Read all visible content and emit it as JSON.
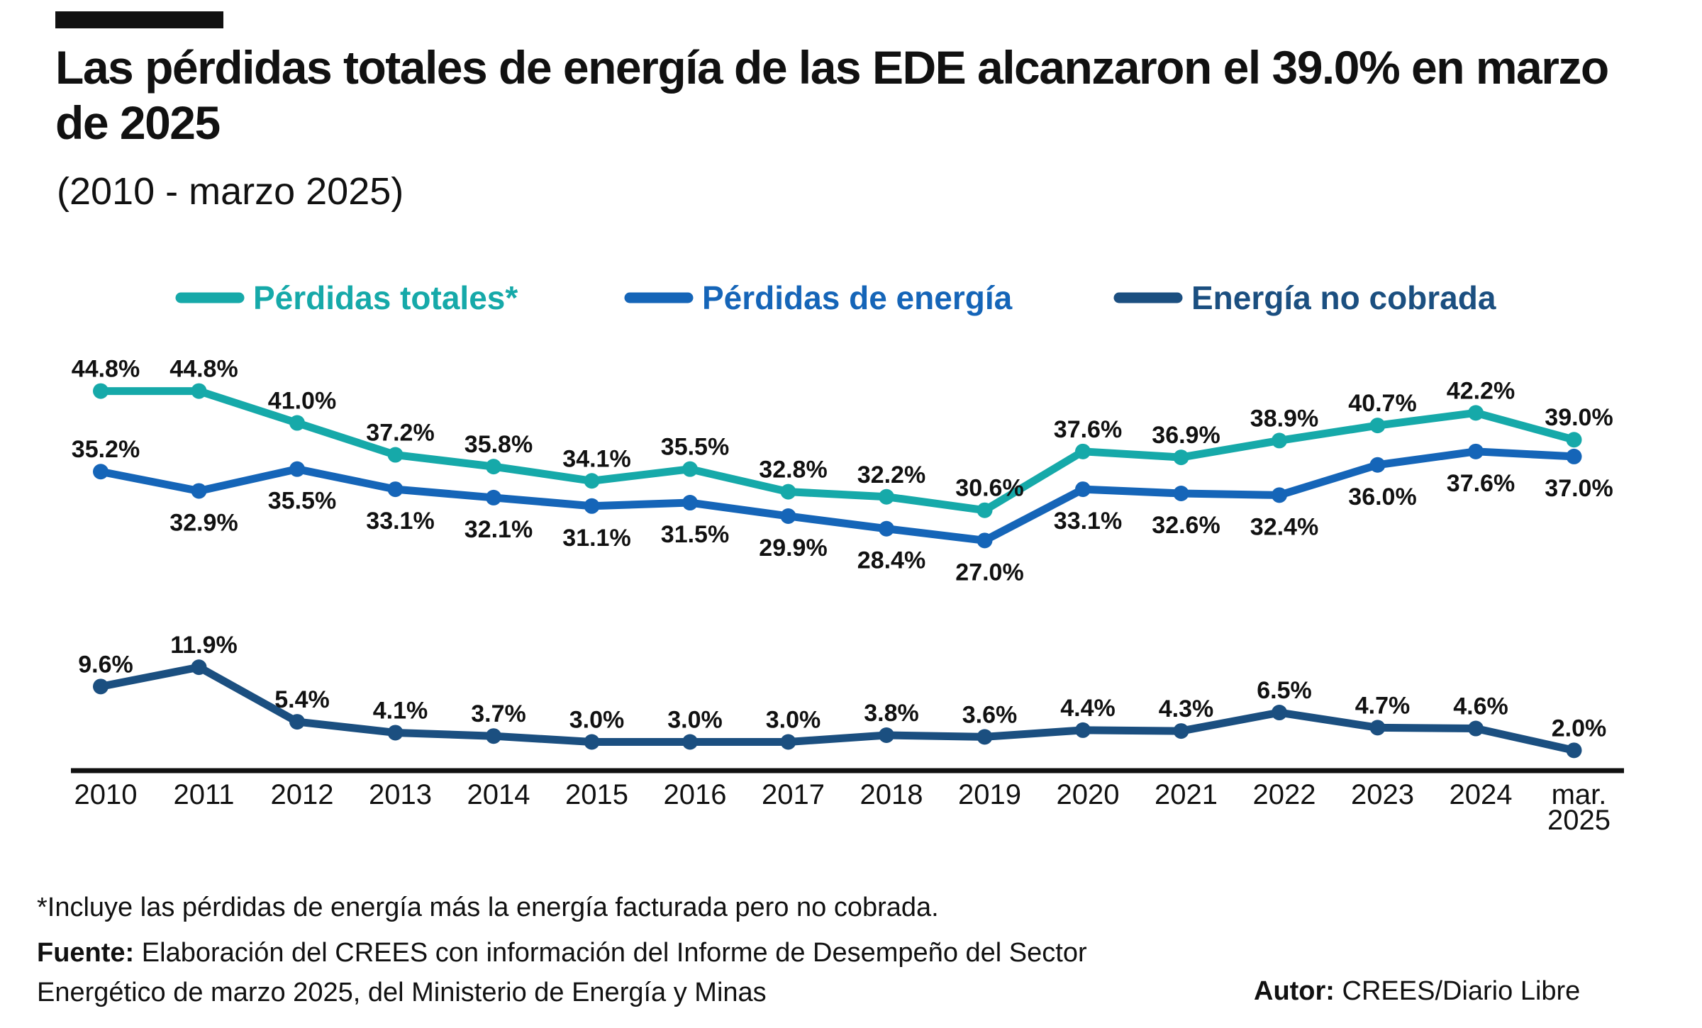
{
  "header": {
    "title": "Las pérdidas totales de energía de las EDE alcanzaron el 39.0% en marzo de 2025",
    "subtitle": "(2010 - marzo 2025)"
  },
  "chart_data": {
    "type": "line",
    "title": "Las pérdidas totales de energía de las EDE alcanzaron el 39.0% en marzo de 2025",
    "subtitle": "(2010 - marzo 2025)",
    "xlabel": "",
    "ylabel": "",
    "ylim": [
      0,
      50
    ],
    "grid": false,
    "legend_position": "top",
    "categories": [
      [
        "2010"
      ],
      [
        "2011"
      ],
      [
        "2012"
      ],
      [
        "2013"
      ],
      [
        "2014"
      ],
      [
        "2015"
      ],
      [
        "2016"
      ],
      [
        "2017"
      ],
      [
        "2018"
      ],
      [
        "2019"
      ],
      [
        "2020"
      ],
      [
        "2021"
      ],
      [
        "2022"
      ],
      [
        "2023"
      ],
      [
        "2024"
      ],
      [
        "mar.",
        "2025"
      ]
    ],
    "series": [
      {
        "name": "Pérdidas totales*",
        "color": "#16A9A9",
        "values": [
          44.8,
          44.8,
          41.0,
          37.2,
          35.8,
          34.1,
          35.5,
          32.8,
          32.2,
          30.6,
          37.6,
          36.9,
          38.9,
          40.7,
          42.2,
          39.0
        ],
        "labels": [
          "44.8%",
          "44.8%",
          "41.0%",
          "37.2%",
          "35.8%",
          "34.1%",
          "35.5%",
          "32.8%",
          "32.2%",
          "30.6%",
          "37.6%",
          "36.9%",
          "38.9%",
          "40.7%",
          "42.2%",
          "39.0%"
        ],
        "label_position": [
          "above",
          "above",
          "above",
          "above",
          "above",
          "above",
          "above",
          "above",
          "above",
          "above",
          "above",
          "above",
          "above",
          "above",
          "above",
          "above"
        ]
      },
      {
        "name": "Pérdidas de energía",
        "color": "#1565B8",
        "values": [
          35.2,
          32.9,
          35.5,
          33.1,
          32.1,
          31.1,
          31.5,
          29.9,
          28.4,
          27.0,
          33.1,
          32.6,
          32.4,
          36.0,
          37.6,
          37.0
        ],
        "labels": [
          "35.2%",
          "32.9%",
          "35.5%",
          "33.1%",
          "32.1%",
          "31.1%",
          "31.5%",
          "29.9%",
          "28.4%",
          "27.0%",
          "33.1%",
          "32.6%",
          "32.4%",
          "36.0%",
          "37.6%",
          "37.0%"
        ],
        "label_position": [
          "above",
          "below",
          "below",
          "below",
          "below",
          "below",
          "below",
          "below",
          "below",
          "below",
          "below",
          "below",
          "below",
          "below",
          "below",
          "below"
        ]
      },
      {
        "name": "Energía no cobrada",
        "color": "#1B4F80",
        "values": [
          9.6,
          11.9,
          5.4,
          4.1,
          3.7,
          3.0,
          3.0,
          3.0,
          3.8,
          3.6,
          4.4,
          4.3,
          6.5,
          4.7,
          4.6,
          2.0
        ],
        "labels": [
          "9.6%",
          "11.9%",
          "5.4%",
          "4.1%",
          "3.7%",
          "3.0%",
          "3.0%",
          "3.0%",
          "3.8%",
          "3.6%",
          "4.4%",
          "4.3%",
          "6.5%",
          "4.7%",
          "4.6%",
          "2.0%"
        ],
        "label_position": [
          "above",
          "above",
          "above",
          "above",
          "above",
          "above",
          "above",
          "above",
          "above",
          "above",
          "above",
          "above",
          "above",
          "above",
          "above",
          "above"
        ]
      }
    ]
  },
  "footer": {
    "note": "*Incluye las pérdidas de energía más la energía facturada pero no cobrada.",
    "source_label": "Fuente:",
    "source_text": "Elaboración del CREES con información del Informe de Desempeño del Sector Energético de marzo 2025, del Ministerio de Energía y Minas",
    "author_label": "Autor:",
    "author_text": "CREES/Diario Libre"
  }
}
